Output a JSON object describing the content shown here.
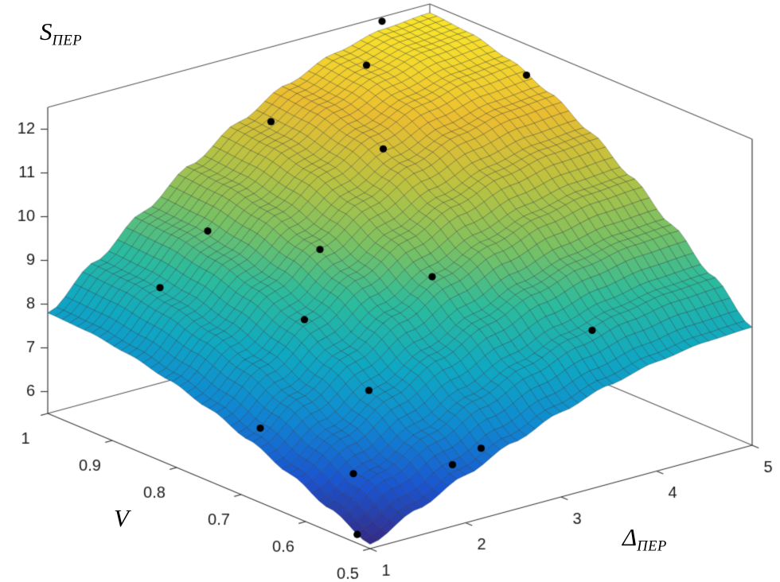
{
  "figure": {
    "background": "#ffffff",
    "labels": {
      "z": {
        "main": "S",
        "sub": "ПЕР"
      },
      "y": {
        "main": "V",
        "sub": ""
      },
      "x": {
        "main": "Δ",
        "sub": "ПЕР"
      }
    }
  },
  "chart_data": {
    "type": "surface",
    "title": "",
    "x_name": "Δ_ПЕР",
    "y_name": "V",
    "z_name": "S_ПЕР",
    "x_range": [
      1,
      5
    ],
    "y_range": [
      0.5,
      1
    ],
    "z_axis_range": [
      5.5,
      12.5
    ],
    "x_ticks": [
      1,
      2,
      3,
      4,
      5
    ],
    "y_ticks": [
      0.5,
      0.6,
      0.7,
      0.8,
      0.9,
      1
    ],
    "z_ticks": [
      6,
      7,
      8,
      9,
      10,
      11,
      12
    ],
    "x_values": [
      1,
      1.5,
      2,
      2.5,
      3,
      3.5,
      4,
      4.5,
      5
    ],
    "y_values": [
      0.5,
      0.5625,
      0.625,
      0.6875,
      0.75,
      0.8125,
      0.875,
      0.9375,
      1.0
    ],
    "z_grid": [
      [
        5.6,
        6.11,
        6.59,
        7.04,
        7.44,
        7.76,
        8.0,
        8.15,
        8.2
      ],
      [
        6.03,
        6.61,
        7.17,
        7.68,
        8.13,
        8.5,
        8.77,
        8.94,
        9.0
      ],
      [
        6.44,
        7.09,
        7.72,
        8.29,
        8.79,
        9.21,
        9.52,
        9.71,
        9.77
      ],
      [
        6.82,
        7.54,
        8.22,
        8.85,
        9.41,
        9.86,
        10.2,
        10.41,
        10.48
      ],
      [
        7.16,
        7.93,
        8.67,
        9.35,
        9.94,
        10.43,
        10.8,
        11.02,
        11.1
      ],
      [
        7.43,
        8.24,
        9.03,
        9.75,
        10.38,
        10.9,
        11.29,
        11.53,
        11.61
      ],
      [
        7.63,
        8.48,
        9.3,
        10.05,
        10.71,
        11.25,
        11.66,
        11.9,
        11.99
      ],
      [
        7.76,
        8.63,
        9.47,
        10.24,
        10.91,
        11.47,
        11.88,
        12.14,
        12.22
      ],
      [
        7.8,
        8.68,
        9.52,
        10.3,
        10.98,
        11.54,
        11.96,
        12.21,
        12.3
      ]
    ],
    "scatter_points": [
      [
        4.5,
        1.0,
        12.4
      ],
      [
        4.0,
        0.95,
        12.0
      ],
      [
        3.0,
        0.95,
        11.3
      ],
      [
        5.0,
        0.85,
        11.8
      ],
      [
        2.0,
        0.9,
        9.7
      ],
      [
        3.5,
        0.85,
        11.0
      ],
      [
        2.5,
        0.8,
        9.6
      ],
      [
        1.5,
        0.9,
        8.7
      ],
      [
        2.0,
        0.75,
        8.6
      ],
      [
        3.0,
        0.7,
        9.3
      ],
      [
        2.0,
        0.65,
        7.6
      ],
      [
        2.5,
        0.55,
        6.6
      ],
      [
        4.0,
        0.6,
        8.1
      ],
      [
        1.2,
        0.7,
        6.9
      ],
      [
        2.2,
        0.55,
        6.4
      ],
      [
        1.5,
        0.6,
        6.3
      ],
      [
        1.0,
        0.52,
        5.7
      ]
    ],
    "color_range": [
      5.6,
      12.3
    ],
    "colormap": [
      [
        0.0,
        "#352a87"
      ],
      [
        0.12,
        "#1a55d0"
      ],
      [
        0.25,
        "#0f8ad1"
      ],
      [
        0.37,
        "#0fa8c2"
      ],
      [
        0.5,
        "#2cbb9c"
      ],
      [
        0.62,
        "#7ac162"
      ],
      [
        0.75,
        "#bcc23f"
      ],
      [
        0.87,
        "#eabd30"
      ],
      [
        1.0,
        "#f9e52a"
      ]
    ],
    "mesh_divisions": 44,
    "legend": "none",
    "grid": "mesh-on-surface",
    "view": "azimuth -37.5, elevation 30"
  }
}
